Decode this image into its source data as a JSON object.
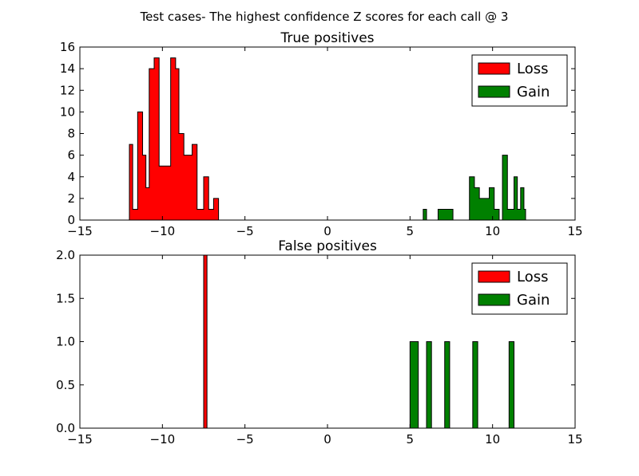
{
  "suptitle": "Test cases- The highest confidence Z scores for each call @ 3",
  "chart_data": [
    {
      "type": "histogram",
      "title": "True positives",
      "xlim": [
        -15,
        15
      ],
      "ylim": [
        0,
        16
      ],
      "xticks": [
        -15,
        -10,
        -5,
        0,
        5,
        10,
        15
      ],
      "yticks": [
        0,
        2,
        4,
        6,
        8,
        10,
        12,
        14,
        16
      ],
      "xtick_labels": [
        "−15",
        "−10",
        "−5",
        "0",
        "5",
        "10",
        "15"
      ],
      "ytick_labels": [
        "0",
        "2",
        "4",
        "6",
        "8",
        "10",
        "12",
        "14",
        "16"
      ],
      "legend": {
        "position": "top-right",
        "entries": [
          {
            "label": "Loss",
            "color": "#ff0000"
          },
          {
            "label": "Gain",
            "color": "#008000"
          }
        ]
      },
      "series": [
        {
          "name": "Loss",
          "color": "#ff0000",
          "bins": [
            [
              -12.0,
              -11.8,
              7
            ],
            [
              -11.8,
              -11.5,
              1
            ],
            [
              -11.5,
              -11.2,
              10
            ],
            [
              -11.2,
              -11.0,
              6
            ],
            [
              -11.0,
              -10.8,
              3
            ],
            [
              -10.8,
              -10.5,
              14
            ],
            [
              -10.5,
              -10.2,
              15
            ],
            [
              -10.2,
              -9.5,
              5
            ],
            [
              -9.5,
              -9.2,
              15
            ],
            [
              -9.2,
              -9.0,
              14
            ],
            [
              -9.0,
              -8.7,
              8
            ],
            [
              -8.7,
              -8.2,
              6
            ],
            [
              -8.2,
              -7.9,
              7
            ],
            [
              -7.9,
              -7.5,
              1
            ],
            [
              -7.5,
              -7.2,
              4
            ],
            [
              -7.2,
              -6.9,
              1
            ],
            [
              -6.9,
              -6.6,
              2
            ],
            [
              -6.6,
              12.0,
              0
            ]
          ]
        },
        {
          "name": "Gain",
          "color": "#008000",
          "bins": [
            [
              -12.0,
              5.8,
              0
            ],
            [
              5.8,
              6.0,
              1
            ],
            [
              6.0,
              6.7,
              0
            ],
            [
              6.7,
              7.6,
              1
            ],
            [
              7.6,
              8.6,
              0
            ],
            [
              8.6,
              8.9,
              4
            ],
            [
              8.9,
              9.2,
              3
            ],
            [
              9.2,
              9.8,
              2
            ],
            [
              9.8,
              10.1,
              3
            ],
            [
              10.1,
              10.4,
              1
            ],
            [
              10.4,
              10.6,
              0
            ],
            [
              10.6,
              10.9,
              6
            ],
            [
              10.9,
              11.3,
              1
            ],
            [
              11.3,
              11.5,
              4
            ],
            [
              11.5,
              11.7,
              1
            ],
            [
              11.7,
              11.9,
              3
            ],
            [
              11.9,
              12.0,
              1
            ]
          ]
        }
      ]
    },
    {
      "type": "histogram",
      "title": "False positives",
      "xlim": [
        -15,
        15
      ],
      "ylim": [
        0,
        2
      ],
      "xticks": [
        -15,
        -10,
        -5,
        0,
        5,
        10,
        15
      ],
      "yticks": [
        0,
        0.5,
        1,
        1.5,
        2
      ],
      "xtick_labels": [
        "−15",
        "−10",
        "−5",
        "0",
        "5",
        "10",
        "15"
      ],
      "ytick_labels": [
        "0.0",
        "0.5",
        "1.0",
        "1.5",
        "2.0"
      ],
      "legend": {
        "position": "top-right",
        "entries": [
          {
            "label": "Loss",
            "color": "#ff0000"
          },
          {
            "label": "Gain",
            "color": "#008000"
          }
        ]
      },
      "series": [
        {
          "name": "Loss",
          "color": "#ff0000",
          "bins": [
            [
              -12.0,
              -7.5,
              0
            ],
            [
              -7.5,
              -7.3,
              2
            ],
            [
              -7.3,
              12.0,
              0
            ]
          ]
        },
        {
          "name": "Gain",
          "color": "#008000",
          "bins": [
            [
              -12.0,
              5.0,
              0
            ],
            [
              5.0,
              5.5,
              1
            ],
            [
              5.5,
              6.0,
              0
            ],
            [
              6.0,
              6.3,
              1
            ],
            [
              6.3,
              7.1,
              0
            ],
            [
              7.1,
              7.4,
              1
            ],
            [
              7.4,
              8.8,
              0
            ],
            [
              8.8,
              9.1,
              1
            ],
            [
              9.1,
              11.0,
              0
            ],
            [
              11.0,
              11.3,
              1
            ],
            [
              11.3,
              12.0,
              0
            ]
          ]
        }
      ]
    }
  ]
}
